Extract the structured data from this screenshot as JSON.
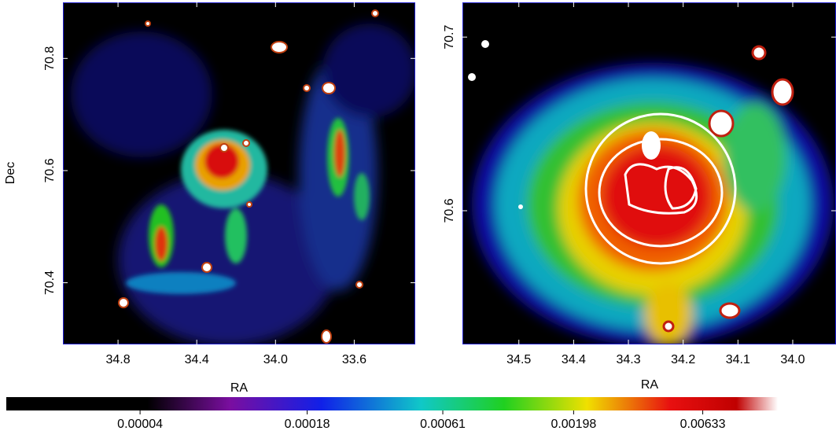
{
  "chart_data": [
    {
      "type": "image",
      "xlabel": "RA",
      "ylabel": "Dec",
      "xlim": [
        35.08,
        33.29
      ],
      "ylim": [
        70.29,
        70.9
      ],
      "xticks": [
        34.8,
        34.4,
        {
          "value": 34,
          "label": "34.0"
        },
        33.6
      ],
      "yticks": [
        70.4,
        70.6,
        70.8
      ]
    },
    {
      "type": "image",
      "xlabel": "RA",
      "xlim": [
        34.603,
        33.921
      ],
      "ylim": [
        70.523,
        70.72
      ],
      "xticks": [
        34.5,
        34.4,
        34.3,
        34.2,
        34.1,
        {
          "value": 34,
          "label": "34.0"
        }
      ],
      "yticks": [
        70.6,
        70.7
      ]
    },
    {
      "type": "colorbar",
      "log": true,
      "xlim": [
        1.2e-05,
        0.021
      ],
      "xticks": [
        4e-05,
        0.00018,
        0.00061,
        0.00198,
        0.00633
      ]
    }
  ]
}
